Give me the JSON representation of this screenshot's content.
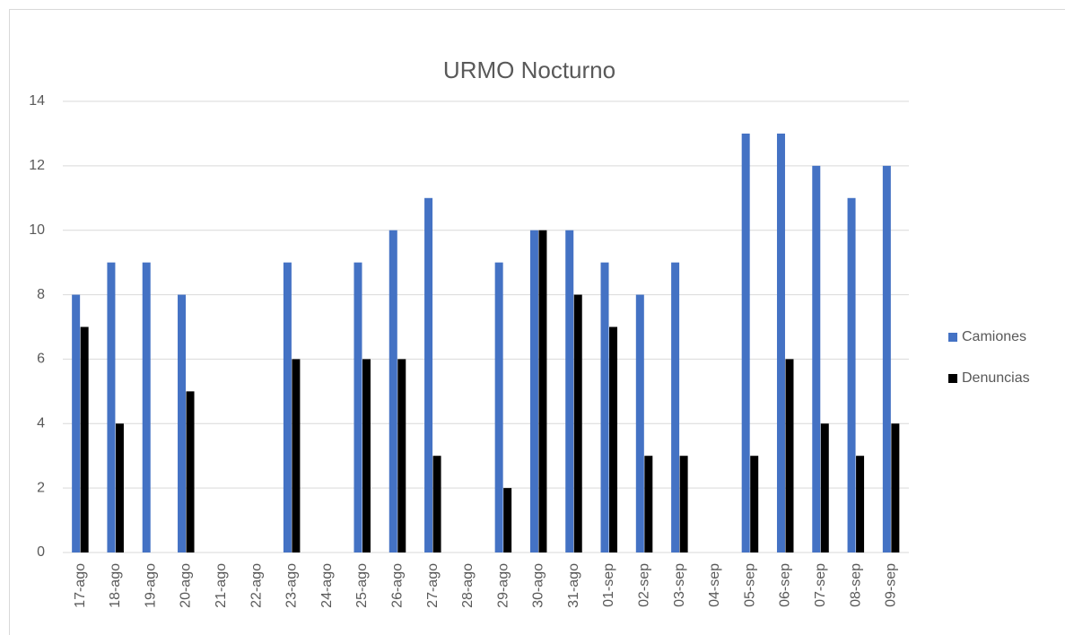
{
  "chart_data": {
    "type": "bar",
    "title": "URMO Nocturno",
    "categories": [
      "17-ago",
      "18-ago",
      "19-ago",
      "20-ago",
      "21-ago",
      "22-ago",
      "23-ago",
      "24-ago",
      "25-ago",
      "26-ago",
      "27-ago",
      "28-ago",
      "29-ago",
      "30-ago",
      "31-ago",
      "01-sep",
      "02-sep",
      "03-sep",
      "04-sep",
      "05-sep",
      "06-sep",
      "07-sep",
      "08-sep",
      "09-sep"
    ],
    "series": [
      {
        "name": "Camiones",
        "color": "#4472c4",
        "values": [
          8,
          9,
          9,
          8,
          0,
          0,
          9,
          0,
          9,
          10,
          11,
          0,
          9,
          10,
          10,
          9,
          8,
          9,
          0,
          13,
          13,
          12,
          11,
          12
        ]
      },
      {
        "name": "Denuncias",
        "color": "#000000",
        "values": [
          7,
          4,
          0,
          5,
          0,
          0,
          6,
          0,
          6,
          6,
          3,
          0,
          2,
          10,
          8,
          7,
          3,
          3,
          0,
          3,
          6,
          4,
          3,
          4
        ]
      }
    ],
    "ylim": [
      0,
      14
    ],
    "yticks": [
      0,
      2,
      4,
      6,
      8,
      10,
      12,
      14
    ],
    "grid": true,
    "legend": "right"
  }
}
